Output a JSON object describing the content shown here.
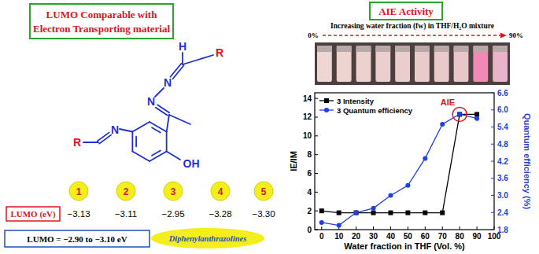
{
  "left_panel": {
    "header": [
      "LUMO Comparable with",
      "Electron Transporting material"
    ],
    "structure_labels": [
      {
        "text": "H",
        "color": "#1f2fd6"
      },
      {
        "text": "R",
        "color": "#e0141e"
      },
      {
        "text": "N",
        "color": "#1f2fd6"
      },
      {
        "text": "N",
        "color": "#1f2fd6"
      },
      {
        "text": "R",
        "color": "#e0141e"
      },
      {
        "text": "N",
        "color": "#1f2fd6"
      },
      {
        "text": "OH",
        "color": "#1f2fd6"
      }
    ],
    "compounds": [
      "1",
      "2",
      "3",
      "4",
      "5"
    ],
    "lumo_label": "LUMO (eV)",
    "lumo_values": [
      {
        "value": -3.13,
        "label": "−3.13"
      },
      {
        "value": -3.11,
        "label": "−3.11"
      },
      {
        "value": -2.95,
        "label": "−2.95"
      },
      {
        "value": -3.28,
        "label": "−3.28"
      },
      {
        "value": -3.3,
        "label": "−3.30"
      }
    ],
    "reference": "LUMO = −2.90 to −3.10 eV",
    "reference_material": "Diphenylanthrazolines"
  },
  "right_panel": {
    "header": "AIE Activity",
    "subtitle": "Increasing water fraction (fw) in THF/H₂O mixture",
    "scale_start": {
      "value": 0,
      "label": "0%"
    },
    "scale_end": {
      "value": 90,
      "label": "90%"
    }
  },
  "chart_data": {
    "type": "line",
    "x_label": "Water fraction in THF (Vol. %)",
    "y_label": "IE/IM",
    "y2_label": "Quantum efficiency (%)",
    "x": [
      0,
      10,
      20,
      30,
      40,
      50,
      60,
      70,
      80,
      90
    ],
    "xlim": [
      -4,
      100
    ],
    "xticks": [
      0,
      10,
      20,
      30,
      40,
      50,
      60,
      70,
      80,
      90,
      100
    ],
    "ylim": [
      0,
      14.6
    ],
    "yticks": [
      0,
      2,
      4,
      6,
      8,
      10,
      12,
      14
    ],
    "y2lim": [
      1.8,
      6.6
    ],
    "y2ticks": [
      1.8,
      2.4,
      {
        "value": 3,
        "label": "3.0"
      },
      3.6,
      4.2,
      4.8,
      5.4,
      {
        "value": 6,
        "label": "6.0"
      },
      6.6
    ],
    "legend": "upper left",
    "series": [
      {
        "name": "3 Intensity",
        "color": "#000000",
        "marker": "square",
        "line_style": "solid",
        "values": [
          2.0,
          1.8,
          1.8,
          1.8,
          1.8,
          1.8,
          1.8,
          1.8,
          12.3,
          12.3
        ]
      },
      {
        "name": "3 Quantum efficiency",
        "color": "#1f3fe0",
        "marker": "circle",
        "line_style": "solid",
        "axis": "y2",
        "values": [
          2.05,
          1.95,
          2.4,
          2.55,
          3.0,
          3.35,
          4.3,
          5.5,
          5.85,
          5.7
        ]
      }
    ],
    "annotations": [
      {
        "text": "AIE",
        "x": 80,
        "y": 12.3
      }
    ]
  }
}
